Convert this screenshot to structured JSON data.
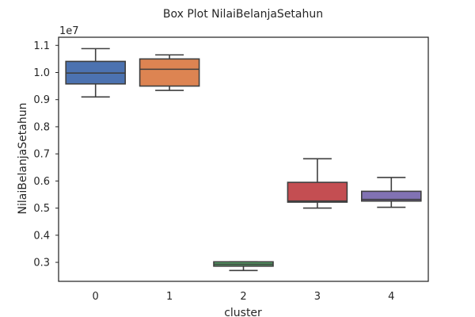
{
  "chart_data": {
    "type": "box",
    "title": "Box Plot NilaiBelanjaSetahun",
    "xlabel": "cluster",
    "ylabel": "NilaiBelanjaSetahun",
    "y_offset_label": "1e7",
    "ylim": [
      0.23,
      1.13
    ],
    "yticks": [
      0.3,
      0.4,
      0.5,
      0.6,
      0.7,
      0.8,
      0.9,
      1.0,
      1.1
    ],
    "ytick_labels": [
      "0.3",
      "0.4",
      "0.5",
      "0.6",
      "0.7",
      "0.8",
      "0.9",
      "1.0",
      "1.1"
    ],
    "categories": [
      "0",
      "1",
      "2",
      "3",
      "4"
    ],
    "grid": false,
    "boxes": [
      {
        "category": "0",
        "color": "#4c72b0",
        "whisker_low": 0.91,
        "q1": 0.958,
        "median": 0.998,
        "q3": 1.041,
        "whisker_high": 1.088
      },
      {
        "category": "1",
        "color": "#dd8452",
        "whisker_low": 0.934,
        "q1": 0.95,
        "median": 1.012,
        "q3": 1.05,
        "whisker_high": 1.065
      },
      {
        "category": "2",
        "color": "#55a868",
        "whisker_low": 0.27,
        "q1": 0.286,
        "median": 0.293,
        "q3": 0.302,
        "whisker_high": 0.302
      },
      {
        "category": "3",
        "color": "#c44e52",
        "whisker_low": 0.5,
        "q1": 0.522,
        "median": 0.526,
        "q3": 0.595,
        "whisker_high": 0.682
      },
      {
        "category": "4",
        "color": "#8172b3",
        "whisker_low": 0.503,
        "q1": 0.526,
        "median": 0.532,
        "q3": 0.562,
        "whisker_high": 0.613
      }
    ]
  }
}
